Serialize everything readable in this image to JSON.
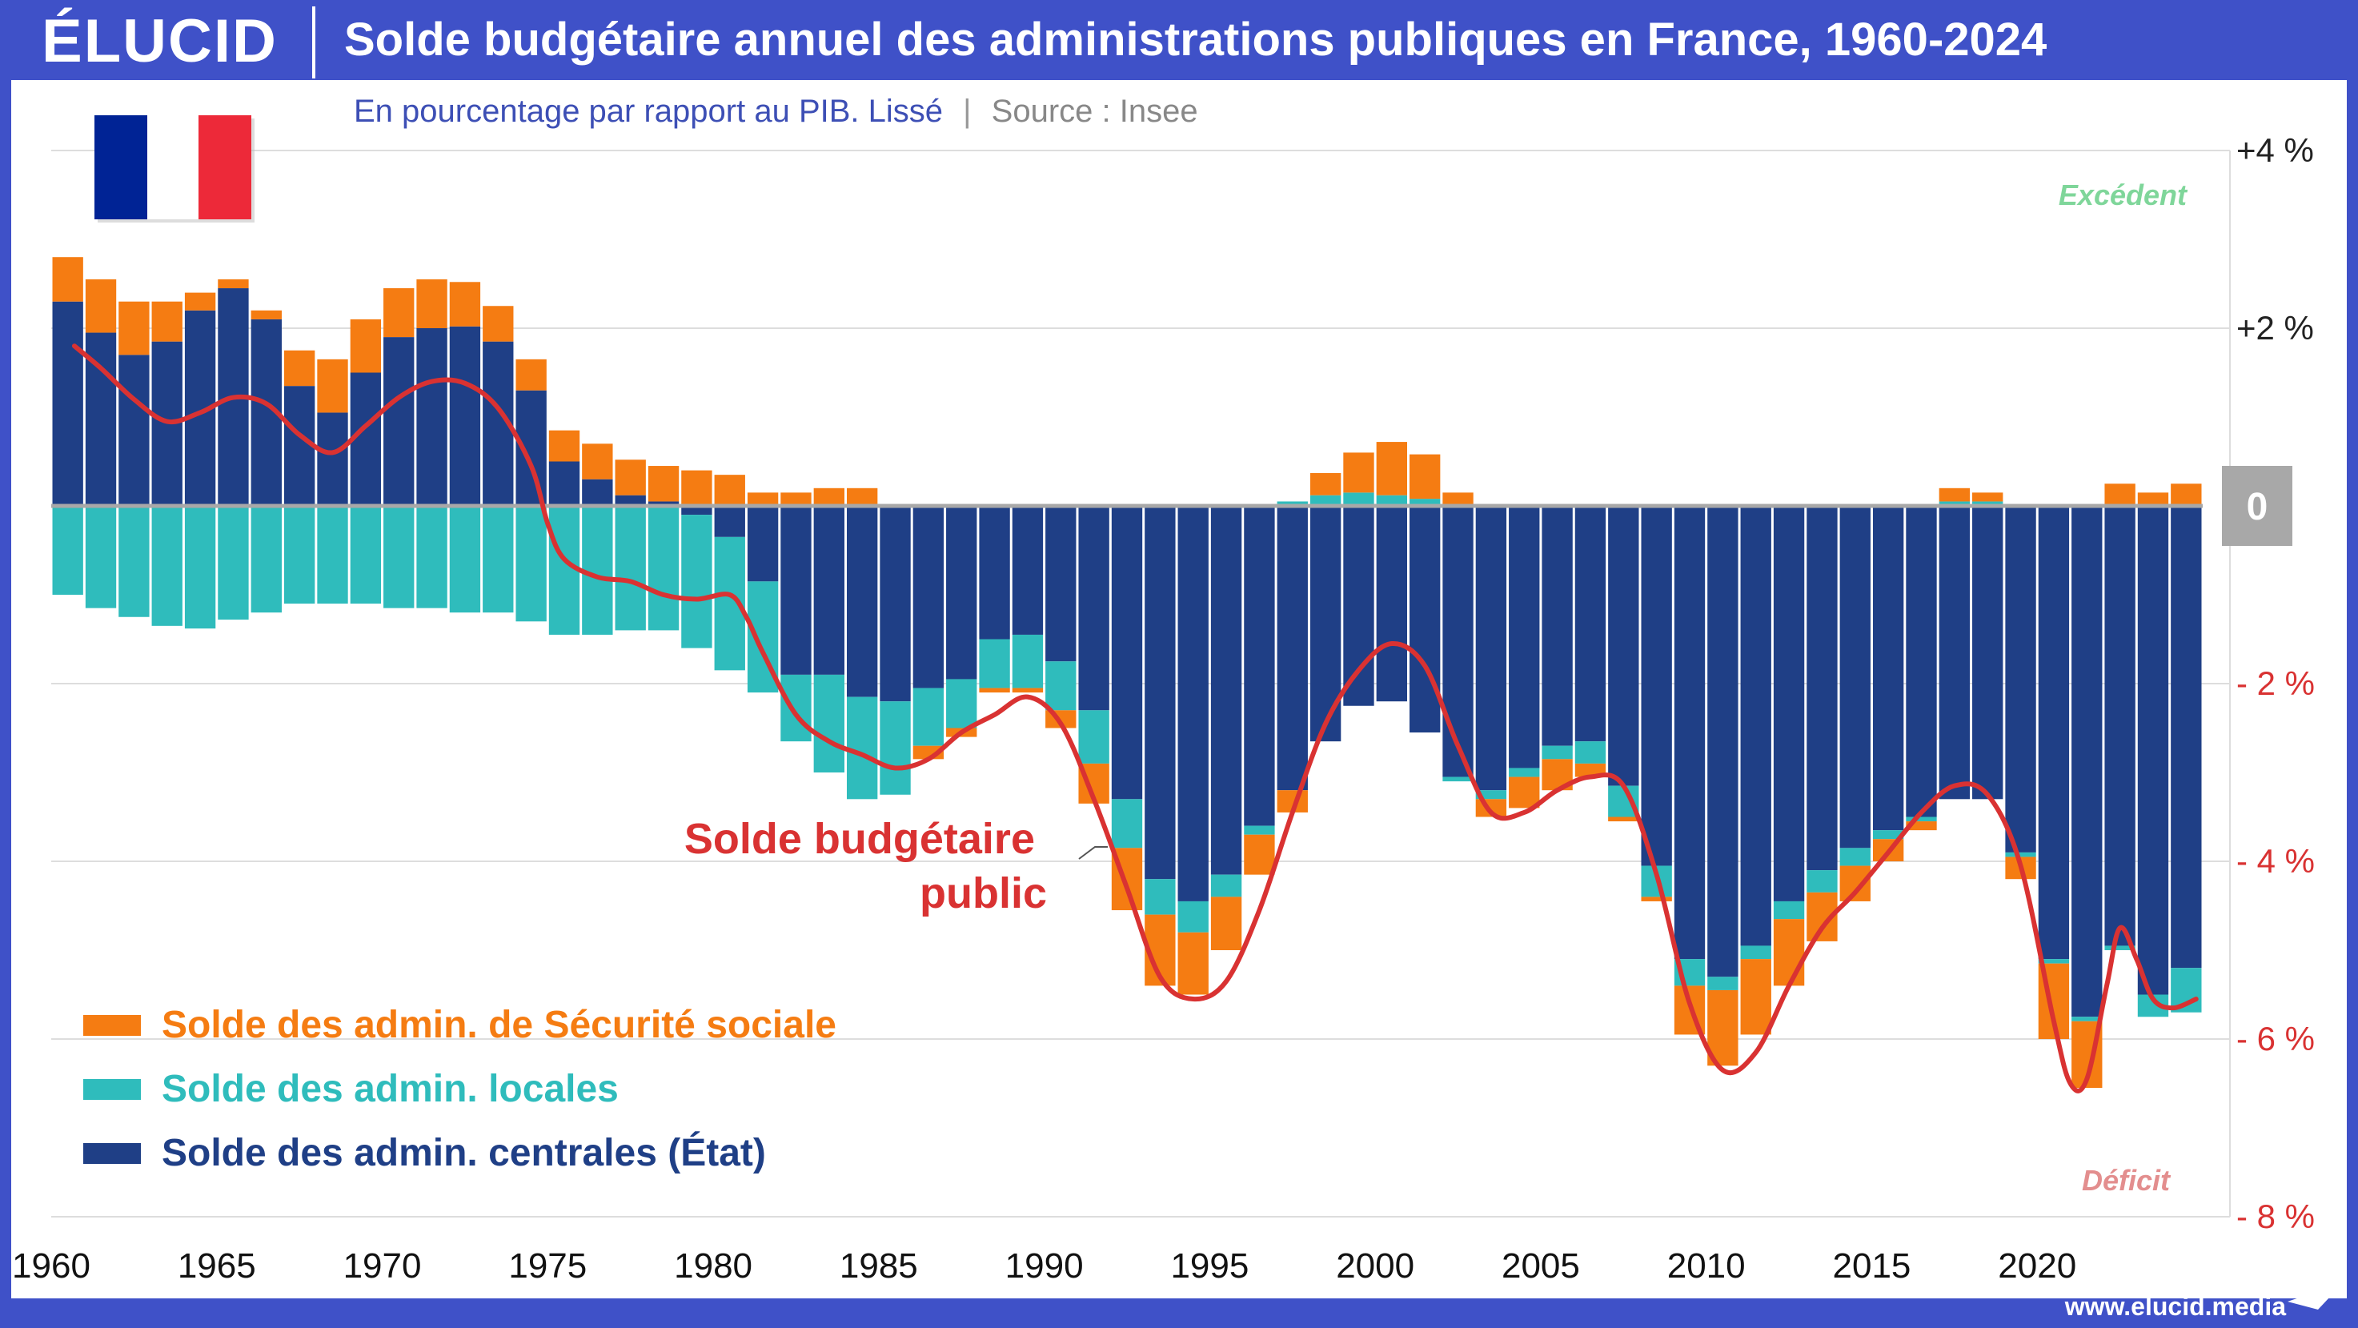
{
  "brand": {
    "logo": "ÉLUCID",
    "url": "www.elucid.media"
  },
  "header": {
    "title": "Solde budgétaire annuel des administrations publiques en France, 1960-2024"
  },
  "subtitle": {
    "main": "En pourcentage par rapport au PIB. Lissé",
    "separator": "|",
    "source": "Source : Insee"
  },
  "colors": {
    "secu": "#f57c12",
    "locales": "#2fbcbc",
    "etat": "#1f3f86",
    "line": "#d93232",
    "excedent": "#7fd69a",
    "deficit": "#e38e8e",
    "frame": "#3f51c8"
  },
  "chart_data": {
    "type": "bar",
    "stacked": true,
    "ylim": [
      -8,
      4
    ],
    "yticks": [
      {
        "value": 4,
        "label": "+4 %"
      },
      {
        "value": 2,
        "label": "+2 %"
      },
      {
        "value": 0,
        "label": "0"
      },
      {
        "value": -2,
        "label": "- 2 %"
      },
      {
        "value": -4,
        "label": "- 4 %"
      },
      {
        "value": -6,
        "label": "- 6 %"
      },
      {
        "value": -8,
        "label": "- 8 %"
      }
    ],
    "xtick_labels": [
      "1960",
      "1965",
      "1970",
      "1975",
      "1980",
      "1985",
      "1990",
      "1995",
      "2000",
      "2005",
      "2010",
      "2015",
      "2020"
    ],
    "years": [
      1960,
      1961,
      1962,
      1963,
      1964,
      1965,
      1966,
      1967,
      1968,
      1969,
      1970,
      1971,
      1972,
      1973,
      1974,
      1975,
      1976,
      1977,
      1978,
      1979,
      1980,
      1981,
      1982,
      1983,
      1984,
      1985,
      1986,
      1987,
      1988,
      1989,
      1990,
      1991,
      1992,
      1993,
      1994,
      1995,
      1996,
      1997,
      1998,
      1999,
      2000,
      2001,
      2002,
      2003,
      2004,
      2005,
      2006,
      2007,
      2008,
      2009,
      2010,
      2011,
      2012,
      2013,
      2014,
      2015,
      2016,
      2017,
      2018,
      2019,
      2020,
      2021,
      2022,
      2023,
      2024
    ],
    "series": [
      {
        "key": "etat",
        "name": "Solde des admin. centrales (État)",
        "values": [
          2.3,
          1.95,
          1.7,
          1.85,
          2.2,
          2.45,
          2.1,
          1.35,
          1.05,
          1.5,
          1.9,
          2.0,
          2.02,
          1.85,
          1.3,
          0.5,
          0.3,
          0.12,
          0.05,
          -0.1,
          -0.35,
          -0.85,
          -1.9,
          -1.9,
          -2.15,
          -2.2,
          -2.05,
          -1.95,
          -1.5,
          -1.45,
          -1.75,
          -2.3,
          -3.3,
          -4.2,
          -4.45,
          -4.15,
          -3.6,
          -3.2,
          -2.65,
          -2.25,
          -2.2,
          -2.55,
          -3.05,
          -3.2,
          -2.95,
          -2.7,
          -2.65,
          -3.15,
          -4.05,
          -5.1,
          -5.3,
          -4.95,
          -4.45,
          -4.1,
          -3.85,
          -3.65,
          -3.5,
          -3.3,
          -3.3,
          -3.9,
          -5.1,
          -5.75,
          -4.95,
          -5.5,
          -5.2
        ]
      },
      {
        "key": "locales",
        "name": "Solde des admin. locales",
        "values": [
          -1.0,
          -1.15,
          -1.25,
          -1.35,
          -1.38,
          -1.28,
          -1.2,
          -1.1,
          -1.1,
          -1.1,
          -1.15,
          -1.15,
          -1.2,
          -1.2,
          -1.3,
          -1.45,
          -1.45,
          -1.4,
          -1.4,
          -1.5,
          -1.5,
          -1.25,
          -0.75,
          -1.1,
          -1.15,
          -1.05,
          -0.65,
          -0.55,
          -0.55,
          -0.6,
          -0.55,
          -0.6,
          -0.55,
          -0.4,
          -0.35,
          -0.25,
          -0.1,
          0.05,
          0.12,
          0.15,
          0.12,
          0.08,
          -0.05,
          -0.1,
          -0.1,
          -0.15,
          -0.25,
          -0.35,
          -0.35,
          -0.3,
          -0.15,
          -0.15,
          -0.2,
          -0.25,
          -0.2,
          -0.1,
          -0.05,
          0.05,
          0.05,
          -0.05,
          -0.05,
          -0.05,
          -0.05,
          -0.25,
          -0.5
        ]
      },
      {
        "key": "secu",
        "name": "Solde des admin. de Sécurité sociale",
        "values": [
          0.5,
          0.6,
          0.6,
          0.45,
          0.2,
          0.1,
          0.1,
          0.4,
          0.6,
          0.6,
          0.55,
          0.55,
          0.5,
          0.4,
          0.35,
          0.35,
          0.4,
          0.4,
          0.4,
          0.4,
          0.35,
          0.15,
          0.15,
          0.2,
          0.2,
          0.0,
          -0.15,
          -0.1,
          -0.05,
          -0.05,
          -0.2,
          -0.45,
          -0.7,
          -0.8,
          -0.7,
          -0.6,
          -0.45,
          -0.25,
          0.25,
          0.45,
          0.6,
          0.5,
          0.15,
          -0.2,
          -0.35,
          -0.35,
          -0.15,
          -0.05,
          -0.05,
          -0.55,
          -0.85,
          -0.85,
          -0.75,
          -0.55,
          -0.4,
          -0.25,
          -0.1,
          0.15,
          0.1,
          -0.25,
          -0.85,
          -0.75,
          0.25,
          0.15,
          0.25
        ]
      }
    ],
    "line": {
      "name": "Solde budgétaire public",
      "label_lines": [
        "Solde budgétaire",
        "public"
      ],
      "points": [
        [
          1960.2,
          1.8
        ],
        [
          1961,
          1.55
        ],
        [
          1962,
          1.2
        ],
        [
          1963,
          0.95
        ],
        [
          1964,
          1.05
        ],
        [
          1965,
          1.22
        ],
        [
          1966,
          1.15
        ],
        [
          1967,
          0.8
        ],
        [
          1968,
          0.6
        ],
        [
          1969,
          0.9
        ],
        [
          1970,
          1.22
        ],
        [
          1971,
          1.4
        ],
        [
          1972,
          1.38
        ],
        [
          1973,
          1.1
        ],
        [
          1974,
          0.45
        ],
        [
          1974.5,
          -0.2
        ],
        [
          1975,
          -0.6
        ],
        [
          1976,
          -0.8
        ],
        [
          1977,
          -0.85
        ],
        [
          1978,
          -1.0
        ],
        [
          1979,
          -1.05
        ],
        [
          1980,
          -1.0
        ],
        [
          1980.5,
          -1.25
        ],
        [
          1981,
          -1.65
        ],
        [
          1982,
          -2.35
        ],
        [
          1983,
          -2.65
        ],
        [
          1984,
          -2.8
        ],
        [
          1985,
          -2.95
        ],
        [
          1986,
          -2.85
        ],
        [
          1987,
          -2.55
        ],
        [
          1988,
          -2.35
        ],
        [
          1989,
          -2.15
        ],
        [
          1990,
          -2.45
        ],
        [
          1991,
          -3.3
        ],
        [
          1992,
          -4.3
        ],
        [
          1993,
          -5.3
        ],
        [
          1994,
          -5.55
        ],
        [
          1995,
          -5.35
        ],
        [
          1996,
          -4.55
        ],
        [
          1997,
          -3.45
        ],
        [
          1998,
          -2.45
        ],
        [
          1999,
          -1.85
        ],
        [
          2000,
          -1.55
        ],
        [
          2001,
          -1.8
        ],
        [
          2002,
          -2.7
        ],
        [
          2003,
          -3.45
        ],
        [
          2004,
          -3.45
        ],
        [
          2005,
          -3.2
        ],
        [
          2006,
          -3.05
        ],
        [
          2007,
          -3.15
        ],
        [
          2008,
          -4.15
        ],
        [
          2009,
          -5.6
        ],
        [
          2010,
          -6.35
        ],
        [
          2011,
          -6.15
        ],
        [
          2012,
          -5.4
        ],
        [
          2013,
          -4.75
        ],
        [
          2014,
          -4.35
        ],
        [
          2015,
          -3.9
        ],
        [
          2016,
          -3.45
        ],
        [
          2017,
          -3.15
        ],
        [
          2018,
          -3.25
        ],
        [
          2019,
          -4.05
        ],
        [
          2020,
          -5.8
        ],
        [
          2020.5,
          -6.5
        ],
        [
          2021,
          -6.45
        ],
        [
          2021.6,
          -5.4
        ],
        [
          2022,
          -4.75
        ],
        [
          2022.5,
          -5.1
        ],
        [
          2023,
          -5.55
        ],
        [
          2023.6,
          -5.65
        ],
        [
          2024.3,
          -5.55
        ]
      ]
    },
    "annotations": {
      "top": "Excédent",
      "bottom": "Déficit"
    }
  }
}
